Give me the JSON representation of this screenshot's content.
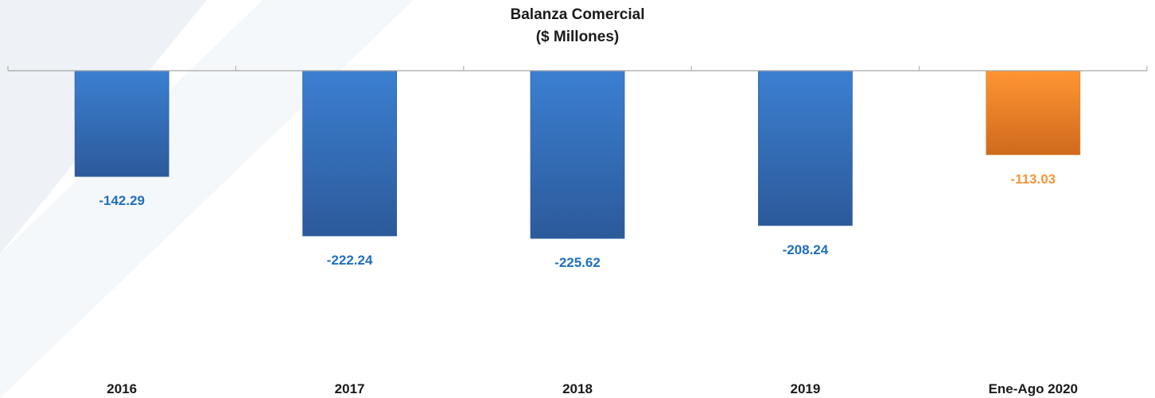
{
  "chart_data": {
    "type": "bar",
    "title": "Balanza Comercial",
    "subtitle": "($ Millones)",
    "categories": [
      "2016",
      "2017",
      "2018",
      "2019",
      "Ene-Ago 2020"
    ],
    "values": [
      -142.29,
      -222.24,
      -225.62,
      -208.24,
      -113.03
    ],
    "value_labels": [
      "-142.29",
      "-222.24",
      "-225.62",
      "-208.24",
      "-113.03"
    ],
    "ylim": [
      -250,
      0
    ],
    "xlabel": "",
    "ylabel": "",
    "grid": false,
    "legend": "none",
    "colors": {
      "default_bar_top": "#3b7fd1",
      "default_bar_bottom": "#2c5a9a",
      "highlight_bar_top": "#ff9533",
      "highlight_bar_bottom": "#cf6a1c",
      "default_label": "#1f6fc0",
      "highlight_label": "#f7963a",
      "axis": "#a6a6a6"
    },
    "highlight_index": 4
  }
}
